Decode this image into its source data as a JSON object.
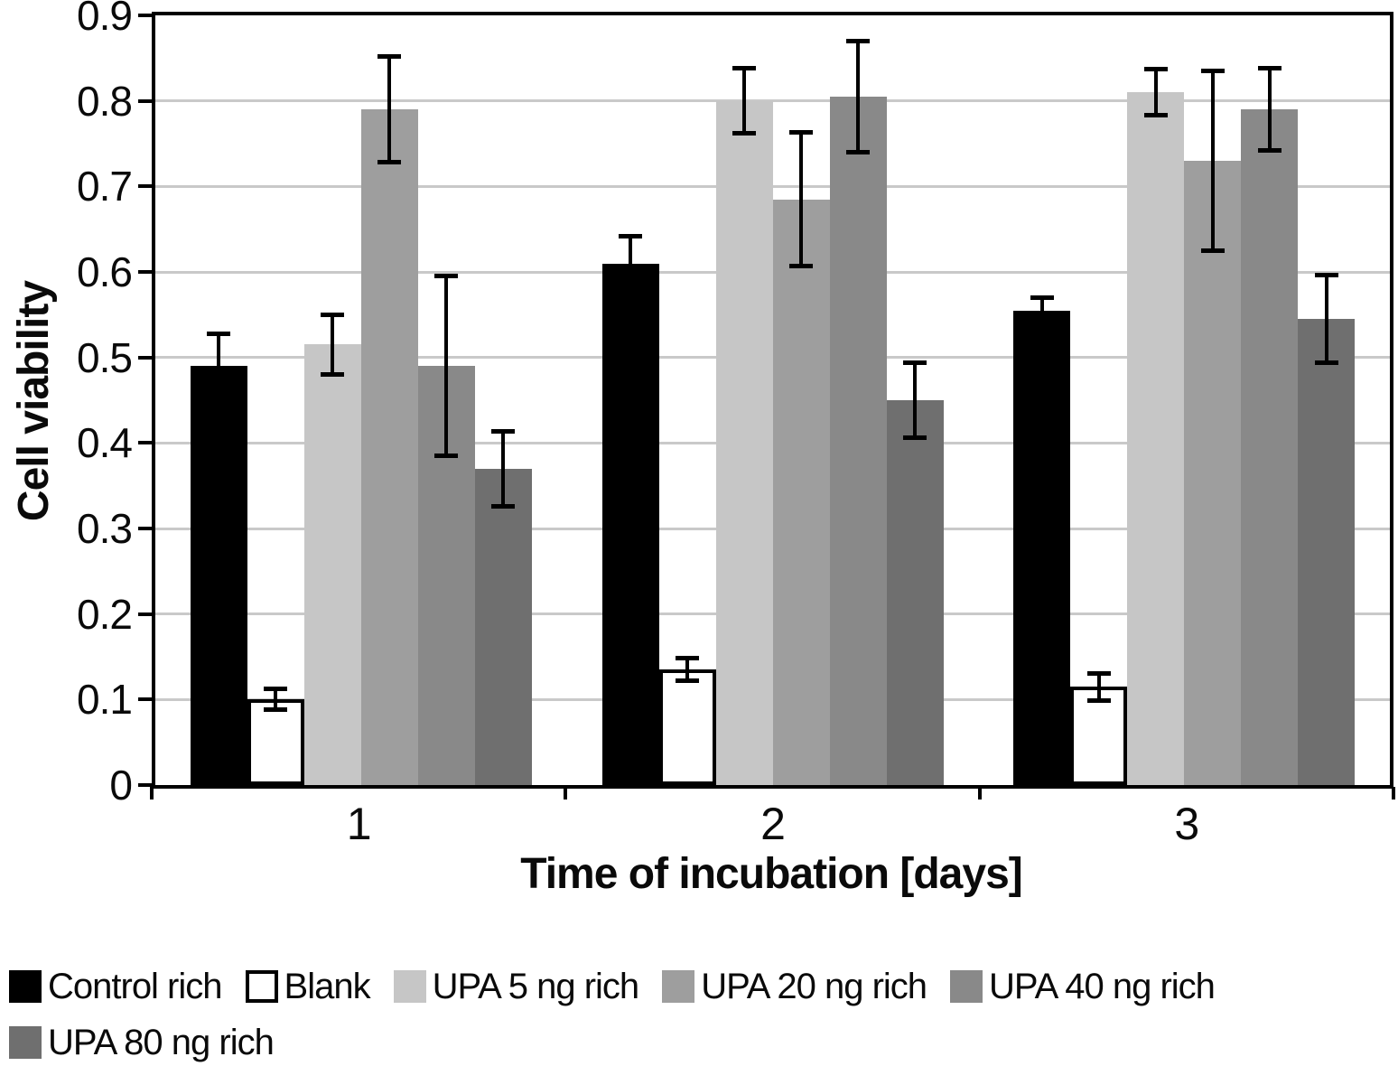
{
  "chart_data": {
    "type": "bar",
    "title": "",
    "xlabel": "Time of incubation [days]",
    "ylabel": "Cell viability",
    "categories": [
      "1",
      "2",
      "3"
    ],
    "ylim": [
      0,
      0.9
    ],
    "ytick_step": 0.1,
    "ytick_labels": [
      "0",
      "0.1",
      "0.2",
      "0.3",
      "0.4",
      "0.5",
      "0.6",
      "0.7",
      "0.8",
      "0.9"
    ],
    "grid": "horizontal-gridlines-on",
    "legend_position": "bottom-left-two-rows",
    "error_bars": true,
    "colors": {
      "axis": "#000000",
      "gridline": "#c9c9c9",
      "background": "#ffffff"
    },
    "series": [
      {
        "name": "Control rich",
        "color": "#000000",
        "border": "#000000",
        "values": [
          0.49,
          0.61,
          0.555
        ],
        "errors": [
          0.038,
          0.032,
          0.015
        ]
      },
      {
        "name": "Blank",
        "color": "#ffffff",
        "border": "#000000",
        "values": [
          0.1,
          0.135,
          0.115
        ],
        "errors": [
          0.012,
          0.013,
          0.016
        ]
      },
      {
        "name": "UPA 5 ng rich",
        "color": "#c6c6c6",
        "border": "#c6c6c6",
        "values": [
          0.515,
          0.8,
          0.81
        ],
        "errors": [
          0.035,
          0.038,
          0.027
        ]
      },
      {
        "name": "UPA 20 ng rich",
        "color": "#9e9e9e",
        "border": "#9e9e9e",
        "values": [
          0.79,
          0.685,
          0.73
        ],
        "errors": [
          0.062,
          0.078,
          0.105
        ]
      },
      {
        "name": "UPA 40 ng rich",
        "color": "#898989",
        "border": "#898989",
        "values": [
          0.49,
          0.805,
          0.79
        ],
        "errors": [
          0.105,
          0.065,
          0.048
        ]
      },
      {
        "name": "UPA 80 ng rich",
        "color": "#6f6f6f",
        "border": "#6f6f6f",
        "values": [
          0.37,
          0.45,
          0.545
        ],
        "errors": [
          0.044,
          0.044,
          0.051
        ]
      }
    ]
  }
}
